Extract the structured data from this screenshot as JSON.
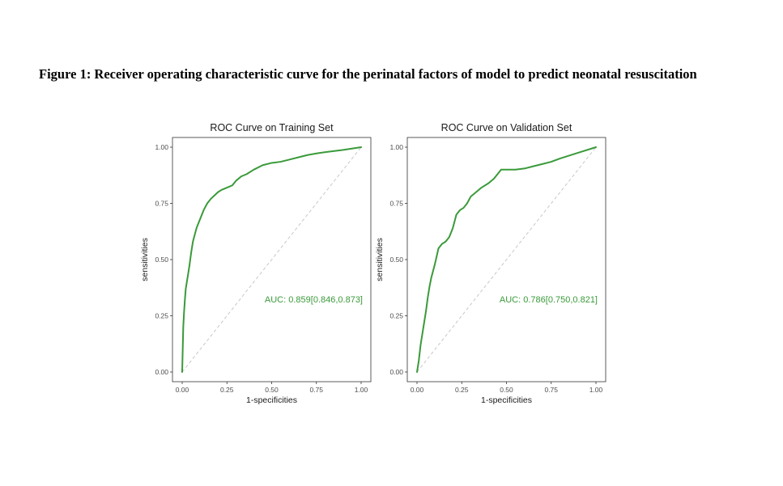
{
  "figure_title": "Figure 1: Receiver operating characteristic curve for the perinatal factors of model to predict neonatal resuscitation",
  "colors": {
    "curve": "#3a9a3a",
    "diagonal": "#c8c8c8",
    "frame": "#333333"
  },
  "chart_data": [
    {
      "type": "line",
      "title": "ROC Curve on Training Set",
      "xlabel": "1-specificities",
      "ylabel": "sensitivities",
      "xlim": [
        0,
        1
      ],
      "ylim": [
        0,
        1
      ],
      "x_ticks": [
        "0.00",
        "0.25",
        "0.50",
        "0.75",
        "1.00"
      ],
      "y_ticks": [
        "0.00",
        "0.25",
        "0.50",
        "0.75",
        "1.00"
      ],
      "grid": false,
      "reference_line": "diagonal",
      "annotation": "AUC: 0.859[0.846,0.873]",
      "series": [
        {
          "x": [
            0,
            0.003,
            0.006,
            0.01,
            0.015,
            0.02,
            0.03,
            0.04,
            0.05,
            0.06,
            0.07,
            0.08,
            0.09,
            0.1,
            0.12,
            0.14,
            0.16,
            0.18,
            0.2,
            0.22,
            0.25,
            0.28,
            0.3,
            0.33,
            0.36,
            0.4,
            0.45,
            0.5,
            0.55,
            0.6,
            0.65,
            0.7,
            0.75,
            0.8,
            0.9,
            1.0
          ],
          "y": [
            0,
            0.1,
            0.2,
            0.26,
            0.32,
            0.37,
            0.42,
            0.47,
            0.53,
            0.58,
            0.61,
            0.64,
            0.66,
            0.68,
            0.72,
            0.75,
            0.77,
            0.785,
            0.8,
            0.81,
            0.82,
            0.83,
            0.85,
            0.87,
            0.88,
            0.9,
            0.92,
            0.93,
            0.935,
            0.945,
            0.955,
            0.965,
            0.972,
            0.978,
            0.988,
            1.0
          ]
        }
      ]
    },
    {
      "type": "line",
      "title": "ROC Curve on Validation Set",
      "xlabel": "1-specificities",
      "ylabel": "sensitivities",
      "xlim": [
        0,
        1
      ],
      "ylim": [
        0,
        1
      ],
      "x_ticks": [
        "0.00",
        "0.25",
        "0.50",
        "0.75",
        "1.00"
      ],
      "y_ticks": [
        "0.00",
        "0.25",
        "0.50",
        "0.75",
        "1.00"
      ],
      "grid": false,
      "reference_line": "diagonal",
      "annotation": "AUC: 0.786[0.750,0.821]",
      "series": [
        {
          "x": [
            0,
            0.01,
            0.02,
            0.03,
            0.04,
            0.05,
            0.06,
            0.07,
            0.08,
            0.1,
            0.12,
            0.14,
            0.16,
            0.18,
            0.2,
            0.22,
            0.24,
            0.26,
            0.28,
            0.3,
            0.33,
            0.36,
            0.4,
            0.43,
            0.45,
            0.47,
            0.5,
            0.55,
            0.6,
            0.65,
            0.7,
            0.75,
            0.8,
            0.9,
            1.0
          ],
          "y": [
            0,
            0.05,
            0.12,
            0.17,
            0.22,
            0.27,
            0.33,
            0.38,
            0.42,
            0.48,
            0.55,
            0.57,
            0.58,
            0.6,
            0.64,
            0.7,
            0.72,
            0.73,
            0.75,
            0.78,
            0.8,
            0.82,
            0.84,
            0.86,
            0.88,
            0.9,
            0.9,
            0.9,
            0.905,
            0.915,
            0.925,
            0.935,
            0.95,
            0.975,
            1.0
          ]
        }
      ]
    }
  ]
}
